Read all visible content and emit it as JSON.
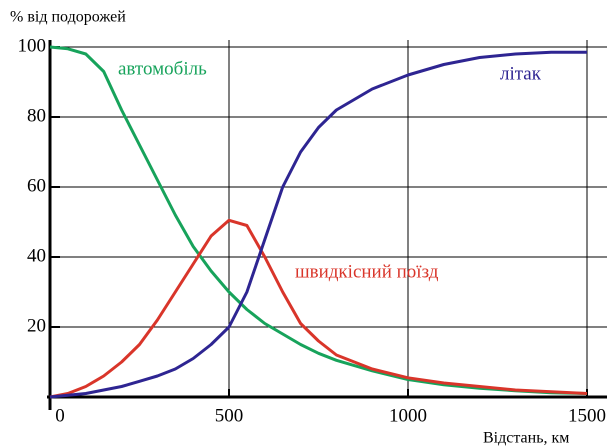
{
  "chart_data": {
    "type": "line",
    "ylabel": "% від подорожей",
    "xlabel": "Відстань, км",
    "x": [
      0,
      50,
      100,
      150,
      200,
      250,
      300,
      350,
      400,
      450,
      500,
      550,
      600,
      650,
      700,
      750,
      800,
      900,
      1000,
      1100,
      1200,
      1300,
      1400,
      1500
    ],
    "series": [
      {
        "name": "автомобіль",
        "color": "#17a35b",
        "values": [
          100,
          99.5,
          98,
          93,
          82,
          72,
          62,
          52,
          43,
          36,
          30,
          25,
          21,
          18,
          15,
          12.5,
          10.5,
          7.5,
          5,
          3.5,
          2.5,
          1.8,
          1.2,
          1
        ]
      },
      {
        "name": "швидкісний поїзд",
        "color": "#d9352a",
        "values": [
          0,
          1,
          3,
          6,
          10,
          15,
          22,
          30,
          38,
          46,
          50.5,
          49,
          40,
          30,
          21,
          16,
          12,
          8,
          5.5,
          4,
          3,
          2,
          1.5,
          1
        ]
      },
      {
        "name": "літак",
        "color": "#2e2592",
        "values": [
          0,
          0.5,
          1,
          2,
          3,
          4.5,
          6,
          8,
          11,
          15,
          20,
          30,
          45,
          60,
          70,
          77,
          82,
          88,
          92,
          95,
          97,
          98,
          98.5,
          98.5
        ]
      }
    ],
    "xlim": [
      0,
      1500
    ],
    "ylim": [
      0,
      100
    ],
    "xticks": [
      0,
      500,
      1000,
      1500
    ],
    "yticks": [
      20,
      40,
      60,
      80,
      100
    ],
    "grid": true
  }
}
